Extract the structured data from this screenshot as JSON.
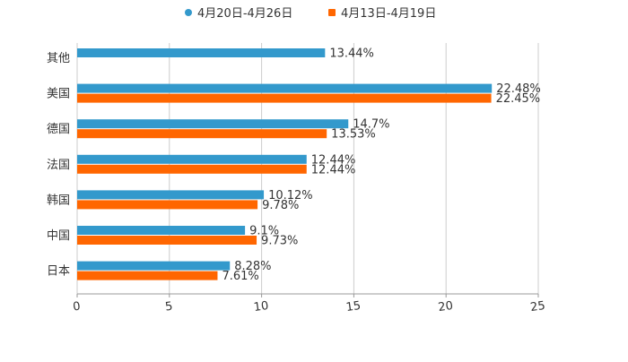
{
  "chart_data": {
    "type": "bar",
    "orientation": "horizontal",
    "title": "",
    "xlabel": "",
    "ylabel": "",
    "xlim": [
      0,
      25
    ],
    "x_ticks": [
      "0",
      "5",
      "10",
      "15",
      "20",
      "25"
    ],
    "grid": true,
    "legend_position": "top-center",
    "categories": [
      "其他",
      "美国",
      "德国",
      "法国",
      "韩国",
      "中国",
      "日本"
    ],
    "series": [
      {
        "name": "4月20日-4月26日",
        "color": "#3399cc",
        "values": [
          13.44,
          22.48,
          14.7,
          12.44,
          10.12,
          9.1,
          8.28
        ],
        "labels": [
          "13.44%",
          "22.48%",
          "14.7%",
          "12.44%",
          "10.12%",
          "9.1%",
          "8.28%"
        ]
      },
      {
        "name": "4月13日-4月19日",
        "color": "#ff6600",
        "values": [
          null,
          22.45,
          13.53,
          12.44,
          9.78,
          9.73,
          7.61
        ],
        "labels": [
          null,
          "22.45%",
          "13.53%",
          "12.44%",
          "9.78%",
          "9.73%",
          "7.61%"
        ]
      }
    ]
  }
}
